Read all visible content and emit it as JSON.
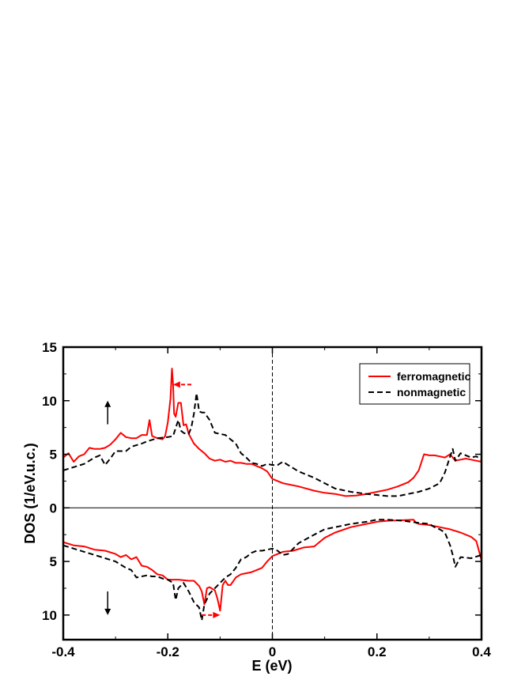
{
  "chart_data": {
    "type": "line",
    "xlabel": "E (eV)",
    "ylabel": "DOS (1/eV.u.c.)",
    "xlim": [
      -0.4,
      0.4
    ],
    "ylim": [
      -12.3,
      15
    ],
    "xticks": [
      {
        "value": -0.4,
        "label": "-0.4"
      },
      {
        "value": -0.2,
        "label": "-0.2"
      },
      {
        "value": 0,
        "label": "0"
      },
      {
        "value": 0.2,
        "label": "0.2"
      },
      {
        "value": 0.4,
        "label": "0.4"
      }
    ],
    "yticks": [
      {
        "value": 15,
        "label": "15"
      },
      {
        "value": 10,
        "label": "10"
      },
      {
        "value": 5,
        "label": "5"
      },
      {
        "value": 0,
        "label": "0"
      },
      {
        "value": -5,
        "label": "5"
      },
      {
        "value": -10,
        "label": "10"
      }
    ],
    "grid": false,
    "legend_position": "top-right",
    "series": [
      {
        "name": "ferromagnetic",
        "color": "#ff0000",
        "style": "solid",
        "up": {
          "x": [
            -0.4,
            -0.39,
            -0.38,
            -0.37,
            -0.36,
            -0.35,
            -0.34,
            -0.33,
            -0.32,
            -0.31,
            -0.3,
            -0.29,
            -0.28,
            -0.27,
            -0.26,
            -0.25,
            -0.24,
            -0.235,
            -0.23,
            -0.22,
            -0.21,
            -0.205,
            -0.2,
            -0.195,
            -0.192,
            -0.19,
            -0.188,
            -0.185,
            -0.18,
            -0.175,
            -0.17,
            -0.165,
            -0.16,
            -0.15,
            -0.14,
            -0.13,
            -0.12,
            -0.11,
            -0.1,
            -0.09,
            -0.08,
            -0.07,
            -0.06,
            -0.05,
            -0.04,
            -0.03,
            -0.02,
            -0.01,
            0,
            0.02,
            0.05,
            0.08,
            0.1,
            0.12,
            0.14,
            0.16,
            0.18,
            0.2,
            0.22,
            0.24,
            0.26,
            0.27,
            0.28,
            0.29,
            0.3,
            0.31,
            0.32,
            0.33,
            0.34,
            0.35,
            0.36,
            0.37,
            0.38,
            0.39,
            0.4
          ],
          "y": [
            4.7,
            5.1,
            4.3,
            4.8,
            5.0,
            5.6,
            5.5,
            5.5,
            5.6,
            5.9,
            6.4,
            7.0,
            6.6,
            6.5,
            6.5,
            6.8,
            6.8,
            8.2,
            6.7,
            6.5,
            6.4,
            6.7,
            8.0,
            10.2,
            13.0,
            11.5,
            8.8,
            8.5,
            9.8,
            9.8,
            7.7,
            7.8,
            6.9,
            6.0,
            5.5,
            5.1,
            4.6,
            4.4,
            4.5,
            4.3,
            4.4,
            4.2,
            4.2,
            4.1,
            4.1,
            3.9,
            3.7,
            3.4,
            2.7,
            2.3,
            2.0,
            1.6,
            1.4,
            1.3,
            1.1,
            1.15,
            1.3,
            1.5,
            1.7,
            2.0,
            2.4,
            2.8,
            3.5,
            5.0,
            4.9,
            4.9,
            4.8,
            4.7,
            5.0,
            4.4,
            4.5,
            4.6,
            4.5,
            4.4,
            4.3
          ]
        },
        "down": {
          "x": [
            -0.4,
            -0.38,
            -0.36,
            -0.34,
            -0.32,
            -0.3,
            -0.29,
            -0.28,
            -0.27,
            -0.26,
            -0.25,
            -0.24,
            -0.23,
            -0.22,
            -0.21,
            -0.2,
            -0.18,
            -0.16,
            -0.15,
            -0.14,
            -0.135,
            -0.13,
            -0.125,
            -0.12,
            -0.11,
            -0.105,
            -0.1,
            -0.095,
            -0.09,
            -0.085,
            -0.08,
            -0.07,
            -0.06,
            -0.05,
            -0.04,
            -0.03,
            -0.02,
            -0.01,
            0,
            0.02,
            0.04,
            0.06,
            0.08,
            0.1,
            0.12,
            0.15,
            0.18,
            0.2,
            0.22,
            0.25,
            0.27,
            0.275,
            0.28,
            0.3,
            0.32,
            0.34,
            0.36,
            0.38,
            0.39,
            0.4
          ],
          "y": [
            -3.2,
            -3.5,
            -3.6,
            -3.9,
            -4.0,
            -4.3,
            -4.6,
            -4.4,
            -4.8,
            -4.6,
            -5.4,
            -5.5,
            -5.8,
            -6.2,
            -6.3,
            -6.7,
            -6.7,
            -6.8,
            -6.8,
            -7.3,
            -7.8,
            -9.0,
            -7.5,
            -7.4,
            -7.7,
            -8.5,
            -9.6,
            -7.2,
            -6.8,
            -7.2,
            -7.2,
            -6.5,
            -6.2,
            -6.1,
            -6.0,
            -5.8,
            -5.6,
            -5.0,
            -4.5,
            -4.1,
            -4.0,
            -3.7,
            -3.6,
            -2.8,
            -2.3,
            -1.8,
            -1.5,
            -1.3,
            -1.2,
            -1.15,
            -1.1,
            -1.4,
            -1.5,
            -1.6,
            -1.8,
            -2.0,
            -2.3,
            -2.7,
            -3.1,
            -4.9
          ]
        }
      },
      {
        "name": "nonmagnetic",
        "color": "#000000",
        "style": "dashed",
        "up": {
          "x": [
            -0.4,
            -0.38,
            -0.36,
            -0.34,
            -0.33,
            -0.32,
            -0.31,
            -0.3,
            -0.29,
            -0.28,
            -0.27,
            -0.25,
            -0.24,
            -0.22,
            -0.2,
            -0.19,
            -0.18,
            -0.175,
            -0.17,
            -0.165,
            -0.16,
            -0.155,
            -0.15,
            -0.145,
            -0.14,
            -0.135,
            -0.13,
            -0.12,
            -0.11,
            -0.1,
            -0.09,
            -0.08,
            -0.07,
            -0.06,
            -0.05,
            -0.04,
            -0.03,
            -0.02,
            -0.01,
            0,
            0.01,
            0.02,
            0.03,
            0.05,
            0.08,
            0.1,
            0.12,
            0.15,
            0.18,
            0.2,
            0.22,
            0.24,
            0.26,
            0.28,
            0.3,
            0.32,
            0.33,
            0.34,
            0.345,
            0.35,
            0.36,
            0.38,
            0.39,
            0.4
          ],
          "y": [
            3.5,
            3.8,
            4.1,
            4.7,
            4.9,
            4.0,
            4.6,
            5.3,
            5.3,
            5.3,
            5.7,
            6.0,
            6.2,
            6.5,
            6.6,
            6.7,
            8.2,
            7.2,
            7.0,
            6.9,
            6.9,
            7.5,
            8.8,
            10.7,
            9.0,
            8.9,
            8.9,
            8.2,
            7.0,
            6.9,
            6.8,
            6.4,
            6.0,
            5.1,
            4.7,
            4.2,
            4.1,
            3.9,
            4.1,
            4.0,
            4.0,
            4.3,
            4.0,
            3.4,
            2.8,
            2.3,
            1.8,
            1.5,
            1.3,
            1.2,
            1.1,
            1.1,
            1.3,
            1.5,
            1.8,
            2.3,
            3.3,
            4.8,
            5.5,
            4.4,
            5.1,
            4.7,
            4.8,
            4.5
          ]
        },
        "down": {
          "x": [
            -0.4,
            -0.38,
            -0.36,
            -0.34,
            -0.32,
            -0.3,
            -0.28,
            -0.27,
            -0.26,
            -0.25,
            -0.24,
            -0.23,
            -0.22,
            -0.21,
            -0.2,
            -0.19,
            -0.185,
            -0.18,
            -0.17,
            -0.16,
            -0.15,
            -0.14,
            -0.135,
            -0.13,
            -0.12,
            -0.11,
            -0.1,
            -0.09,
            -0.08,
            -0.07,
            -0.06,
            -0.05,
            -0.04,
            -0.03,
            -0.02,
            -0.01,
            0,
            0.01,
            0.02,
            0.03,
            0.05,
            0.08,
            0.1,
            0.12,
            0.15,
            0.18,
            0.2,
            0.22,
            0.25,
            0.28,
            0.3,
            0.31,
            0.32,
            0.33,
            0.34,
            0.345,
            0.35,
            0.36,
            0.38,
            0.4
          ],
          "y": [
            -3.5,
            -3.8,
            -4.1,
            -4.4,
            -4.7,
            -5.0,
            -5.6,
            -5.8,
            -6.5,
            -6.4,
            -6.3,
            -6.4,
            -6.4,
            -6.6,
            -6.7,
            -7.0,
            -8.6,
            -7.5,
            -7.0,
            -7.8,
            -8.8,
            -9.3,
            -10.5,
            -9.0,
            -8.0,
            -7.5,
            -7.0,
            -6.5,
            -6.2,
            -5.6,
            -4.8,
            -4.6,
            -4.2,
            -4.0,
            -4.0,
            -3.9,
            -3.8,
            -4.0,
            -4.4,
            -4.3,
            -3.3,
            -2.5,
            -2.0,
            -1.8,
            -1.5,
            -1.3,
            -1.1,
            -1.1,
            -1.2,
            -1.4,
            -1.5,
            -1.8,
            -2.0,
            -2.3,
            -3.5,
            -4.4,
            -5.5,
            -4.6,
            -4.7,
            -4.4
          ]
        }
      }
    ],
    "annotations": [
      {
        "type": "arrow",
        "symbol": "up",
        "meaning": "spin-up",
        "color": "#000000",
        "x": -0.315,
        "y_from": 7.8,
        "y_to": 10.0
      },
      {
        "type": "arrow",
        "symbol": "down",
        "meaning": "spin-down",
        "color": "#000000",
        "x": -0.315,
        "y_from": -7.8,
        "y_to": -10.0
      },
      {
        "type": "arrow",
        "direction": "left",
        "color": "#ff0000",
        "dashed": true,
        "y": 11.5,
        "x_from": -0.155,
        "x_to": -0.19
      },
      {
        "type": "arrow",
        "direction": "right",
        "color": "#ff0000",
        "dashed": true,
        "y": -10.0,
        "x_from": -0.135,
        "x_to": -0.1
      }
    ],
    "reference_lines": [
      {
        "orientation": "horizontal",
        "value": 0,
        "style": "solid"
      },
      {
        "orientation": "vertical",
        "value": 0,
        "style": "dashed"
      }
    ]
  }
}
